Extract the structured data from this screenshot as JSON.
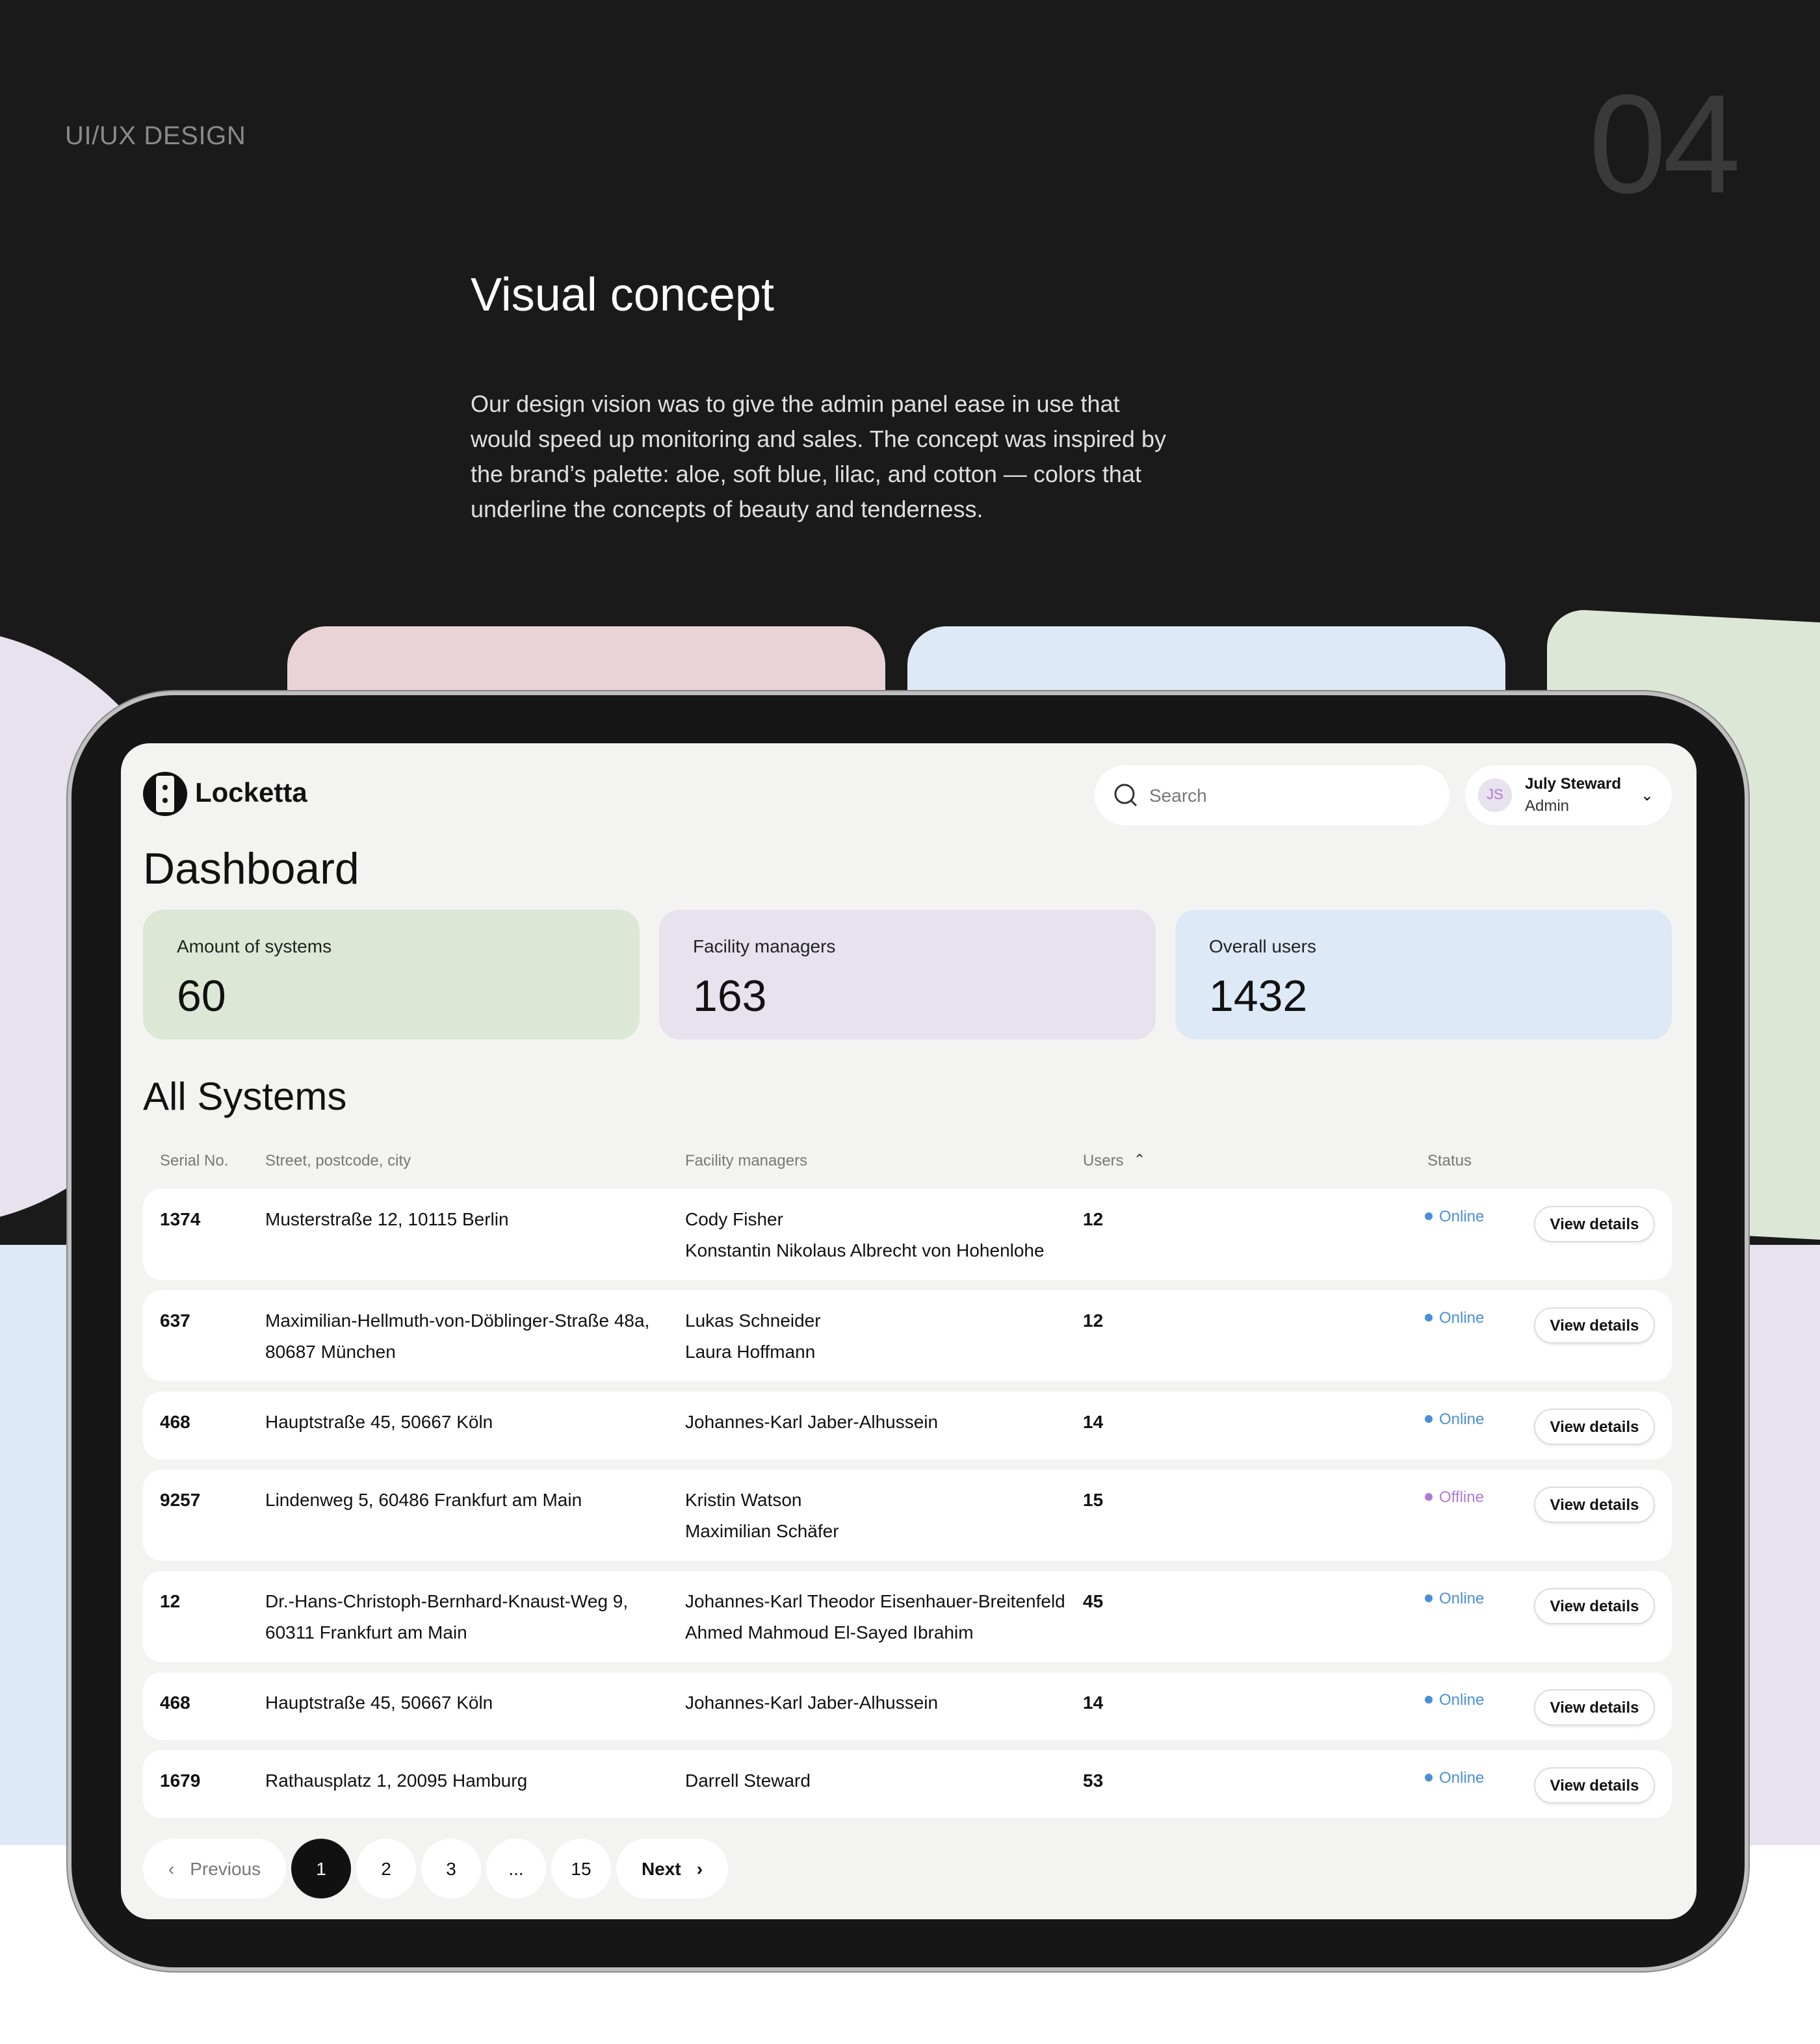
{
  "page": {
    "kicker": "UI/UX DESIGN",
    "section_number": "04",
    "title": "Visual concept",
    "description": "Our design vision was to give the admin panel ease in use that would speed up monitoring and sales. The concept was inspired by the brand’s palette: aloe, soft blue, lilac, and cotton — colors that underline the concepts of beauty and tenderness."
  },
  "colors": {
    "aloe": "#dce8d5",
    "soft_blue": "#dde9f6",
    "lilac": "#e7e2ee",
    "cotton": "#e9d3d6",
    "online": "#4a8fd6",
    "offline": "#b07bd6"
  },
  "app": {
    "brand": "Locketta",
    "search": {
      "placeholder": "Search",
      "value": ""
    },
    "user": {
      "initials": "JS",
      "name": "July Steward",
      "role": "Admin"
    },
    "dashboard_title": "Dashboard",
    "stats": [
      {
        "label": "Amount of systems",
        "value": "60"
      },
      {
        "label": "Facility managers",
        "value": "163"
      },
      {
        "label": "Overall users",
        "value": "1432"
      }
    ],
    "systems_title": "All Systems",
    "columns": {
      "serial": "Serial No.",
      "address": "Street, postcode, city",
      "managers": "Facility managers",
      "users": "Users",
      "status": "Status"
    },
    "view_details": "View details",
    "rows": [
      {
        "serial": "1374",
        "address": "Musterstraße 12, 10115 Berlin",
        "managers": [
          "Cody Fisher",
          "Konstantin Nikolaus Albrecht von Hohenlohe"
        ],
        "users": "12",
        "status": "Online"
      },
      {
        "serial": "637",
        "address": "Maximilian-Hellmuth-von-Döblinger-Straße 48a, 80687 München",
        "managers": [
          "Lukas Schneider",
          "Laura Hoffmann"
        ],
        "users": "12",
        "status": "Online"
      },
      {
        "serial": "468",
        "address": "Hauptstraße 45, 50667 Köln",
        "managers": [
          "Johannes-Karl Jaber-Alhussein"
        ],
        "users": "14",
        "status": "Online"
      },
      {
        "serial": "9257",
        "address": "Lindenweg 5, 60486 Frankfurt am Main",
        "managers": [
          "Kristin Watson",
          "Maximilian Schäfer"
        ],
        "users": "15",
        "status": "Offline"
      },
      {
        "serial": "12",
        "address": "Dr.-Hans-Christoph-Bernhard-Knaust-Weg 9, 60311 Frankfurt am Main",
        "managers": [
          "Johannes-Karl Theodor Eisenhauer-Breitenfeld",
          "Ahmed Mahmoud El-Sayed Ibrahim"
        ],
        "users": "45",
        "status": "Online"
      },
      {
        "serial": "468",
        "address": "Hauptstraße 45, 50667 Köln",
        "managers": [
          "Johannes-Karl Jaber-Alhussein"
        ],
        "users": "14",
        "status": "Online"
      },
      {
        "serial": "1679",
        "address": "Rathausplatz 1, 20095 Hamburg",
        "managers": [
          "Darrell Steward"
        ],
        "users": "53",
        "status": "Online"
      }
    ],
    "pagination": {
      "previous": "Previous",
      "next": "Next",
      "pages": [
        "1",
        "2",
        "3",
        "...",
        "15"
      ],
      "current": "1"
    }
  }
}
